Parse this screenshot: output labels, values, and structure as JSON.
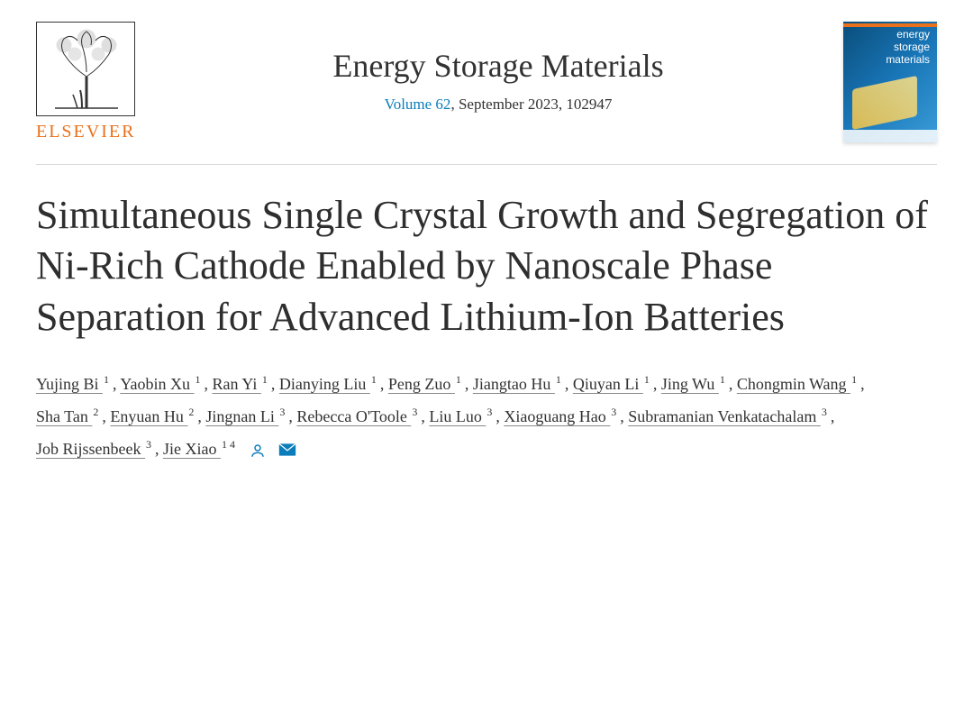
{
  "publisher": {
    "name": "ELSEVIER",
    "name_color": "#e9711c"
  },
  "journal": {
    "name": "Energy Storage Materials",
    "volume_text": "Volume 62",
    "issue_text": ", September 2023, 102947",
    "cover_line1": "energy",
    "cover_line2": "storage",
    "cover_line3": "materials"
  },
  "article": {
    "title": "Simultaneous Single Crystal Growth and Segregation of Ni-Rich Cathode Enabled by Nanoscale Phase Separation for Advanced Lithium-Ion Batteries"
  },
  "authors": [
    {
      "name": "Yujing Bi",
      "affil": "1"
    },
    {
      "name": "Yaobin Xu",
      "affil": "1"
    },
    {
      "name": "Ran Yi",
      "affil": "1"
    },
    {
      "name": "Dianying Liu",
      "affil": "1"
    },
    {
      "name": "Peng Zuo",
      "affil": "1"
    },
    {
      "name": "Jiangtao Hu",
      "affil": "1"
    },
    {
      "name": "Qiuyan Li",
      "affil": "1"
    },
    {
      "name": "Jing Wu",
      "affil": "1"
    },
    {
      "name": "Chongmin Wang",
      "affil": "1"
    },
    {
      "name": "Sha Tan",
      "affil": "2"
    },
    {
      "name": "Enyuan Hu",
      "affil": "2"
    },
    {
      "name": "Jingnan Li",
      "affil": "3"
    },
    {
      "name": "Rebecca O'Toole",
      "affil": "3"
    },
    {
      "name": "Liu Luo",
      "affil": "3"
    },
    {
      "name": "Xiaoguang Hao",
      "affil": "3"
    },
    {
      "name": "Subramanian Venkatachalam",
      "affil": "3"
    },
    {
      "name": "Job Rijssenbeek",
      "affil": "3"
    },
    {
      "name": "Jie Xiao",
      "affil": "1 4",
      "corresponding": true
    }
  ],
  "colors": {
    "link": "#0c7dbb",
    "text": "#323232",
    "accent": "#e9711c",
    "border": "#d8d8d8"
  },
  "typography": {
    "journal_name_size": 36,
    "title_size": 44,
    "author_size": 18,
    "volume_size": 17
  }
}
